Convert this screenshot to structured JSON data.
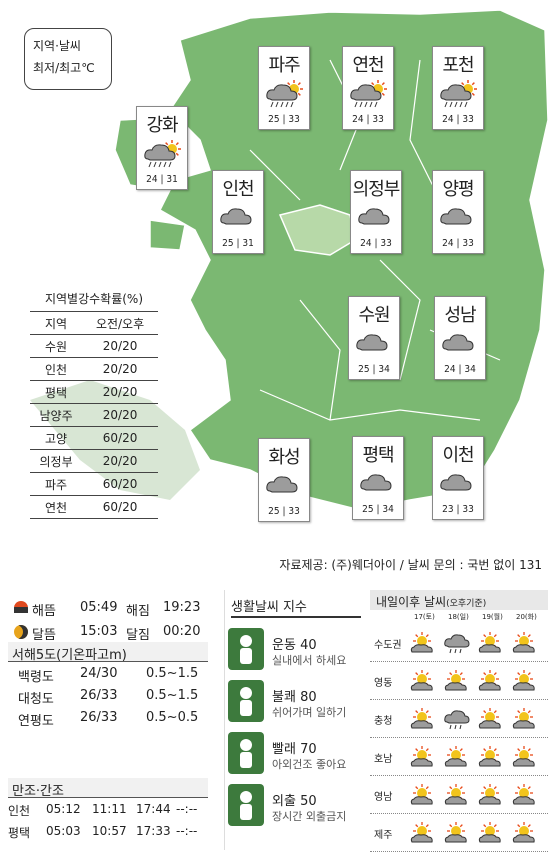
{
  "legend": {
    "line1": "지역·날씨",
    "line2": "최저/최고℃"
  },
  "cities": [
    {
      "name": "파주",
      "low": "25",
      "high": "33",
      "icon": "rain-cloud-sun-icon"
    },
    {
      "name": "연천",
      "low": "24",
      "high": "33",
      "icon": "rain-cloud-sun-icon"
    },
    {
      "name": "포천",
      "low": "24",
      "high": "33",
      "icon": "rain-cloud-sun-icon"
    },
    {
      "name": "강화",
      "low": "24",
      "high": "31",
      "icon": "rain-cloud-sun-icon"
    },
    {
      "name": "인천",
      "low": "25",
      "high": "31",
      "icon": "cloud-icon"
    },
    {
      "name": "의정부",
      "low": "24",
      "high": "33",
      "icon": "cloud-icon"
    },
    {
      "name": "양평",
      "low": "24",
      "high": "33",
      "icon": "cloud-icon"
    },
    {
      "name": "수원",
      "low": "25",
      "high": "34",
      "icon": "cloud-icon"
    },
    {
      "name": "성남",
      "low": "24",
      "high": "34",
      "icon": "cloud-icon"
    },
    {
      "name": "화성",
      "low": "25",
      "high": "33",
      "icon": "cloud-icon"
    },
    {
      "name": "평택",
      "low": "25",
      "high": "34",
      "icon": "cloud-icon"
    },
    {
      "name": "이천",
      "low": "23",
      "high": "33",
      "icon": "cloud-icon"
    }
  ],
  "rain_prob": {
    "title": "지역별강수확률(%)",
    "header": [
      "지역",
      "오전/오후"
    ],
    "rows": [
      [
        "수원",
        "20/20"
      ],
      [
        "인천",
        "20/20"
      ],
      [
        "평택",
        "20/20"
      ],
      [
        "남양주",
        "20/20"
      ],
      [
        "고양",
        "60/20"
      ],
      [
        "의정부",
        "20/20"
      ],
      [
        "파주",
        "60/20"
      ],
      [
        "연천",
        "60/20"
      ]
    ]
  },
  "source": "자료제공: (주)웨더아이 / 날씨 문의 : 국번 없이 131",
  "sun_moon": {
    "sunrise_label": "해뜸",
    "sunrise": "05:49",
    "sunset_label": "해짐",
    "sunset": "19:23",
    "moonrise_label": "달뜸",
    "moonrise": "15:03",
    "moonset_label": "달짐",
    "moonset": "00:20"
  },
  "sea": {
    "title": "서해5도(기온파고m)",
    "rows": [
      [
        "백령도",
        "24/30",
        "0.5~1.5"
      ],
      [
        "대청도",
        "26/33",
        "0.5~1.5"
      ],
      [
        "연평도",
        "26/33",
        "0.5~0.5"
      ]
    ]
  },
  "tide": {
    "title": "만조·간조",
    "rows": [
      [
        "인천",
        "05:12",
        "11:11",
        "17:44",
        "--:--"
      ],
      [
        "평택",
        "05:03",
        "10:57",
        "17:33",
        "--:--"
      ]
    ]
  },
  "life": {
    "title": "생활날씨 지수",
    "items": [
      {
        "name": "운동",
        "value": "40",
        "desc": "실내에서 하세요",
        "icon": "exercise-icon"
      },
      {
        "name": "불쾌",
        "value": "80",
        "desc": "쉬어가며 일하기",
        "icon": "discomfort-icon"
      },
      {
        "name": "빨래",
        "value": "70",
        "desc": "아외건조 좋아요",
        "icon": "laundry-icon"
      },
      {
        "name": "외출",
        "value": "50",
        "desc": "장시간 외출금지",
        "icon": "outing-icon"
      }
    ]
  },
  "forecast": {
    "title": "내일이후 날씨",
    "subtitle": "(오후기준)",
    "days": [
      "17(토)",
      "18(일)",
      "19(월)",
      "20(화)"
    ],
    "regions": [
      {
        "name": "수도권",
        "icons": [
          "sun-cloud-icon",
          "rain-cloud-icon",
          "sun-cloud-icon",
          "sun-cloud-icon"
        ]
      },
      {
        "name": "영동",
        "icons": [
          "sun-cloud-icon",
          "sun-cloud-icon",
          "sun-cloud-icon",
          "sun-cloud-icon"
        ]
      },
      {
        "name": "충청",
        "icons": [
          "sun-cloud-icon",
          "rain-cloud-icon",
          "sun-cloud-icon",
          "sun-cloud-icon"
        ]
      },
      {
        "name": "호남",
        "icons": [
          "sun-cloud-icon",
          "sun-cloud-icon",
          "sun-cloud-icon",
          "sun-cloud-icon"
        ]
      },
      {
        "name": "영남",
        "icons": [
          "sun-cloud-icon",
          "sun-cloud-icon",
          "sun-cloud-icon",
          "sun-cloud-icon"
        ]
      },
      {
        "name": "제주",
        "icons": [
          "sun-cloud-icon",
          "sun-cloud-icon",
          "sun-cloud-icon",
          "sun-cloud-icon"
        ]
      }
    ]
  },
  "colors": {
    "land": "#7bb872",
    "land_dark": "#6aa762",
    "seoul": "#b7d9a8",
    "icon_green": "#3d7a3d"
  }
}
